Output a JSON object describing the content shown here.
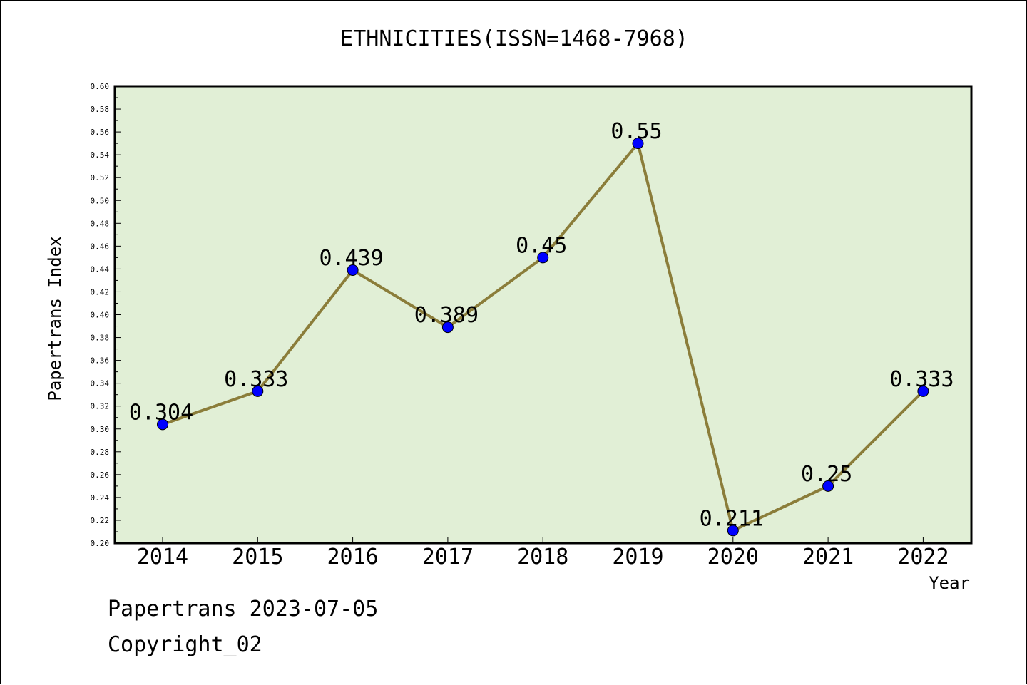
{
  "title": "ETHNICITIES(ISSN=1468-7968)",
  "footer": {
    "line1": "Papertrans 2023-07-05",
    "line2": "Copyright_02"
  },
  "colors": {
    "plot_background": "#e1efd6",
    "line": "#8b7d3a",
    "marker": "#0000ff"
  },
  "chart_data": {
    "type": "line",
    "title": "ETHNICITIES(ISSN=1468-7968)",
    "xlabel": "Year",
    "ylabel": "Papertrans Index",
    "categories": [
      "2014",
      "2015",
      "2016",
      "2017",
      "2018",
      "2019",
      "2020",
      "2021",
      "2022"
    ],
    "values": [
      0.304,
      0.333,
      0.439,
      0.389,
      0.45,
      0.55,
      0.211,
      0.25,
      0.333
    ],
    "data_labels": [
      "0.304",
      "0.333",
      "0.439",
      "0.389",
      "0.45",
      "0.55",
      "0.211",
      "0.25",
      "0.333"
    ],
    "ylim": [
      0.2,
      0.6
    ],
    "yticks": [
      "0.20",
      "0.22",
      "0.24",
      "0.26",
      "0.28",
      "0.30",
      "0.32",
      "0.34",
      "0.36",
      "0.38",
      "0.40",
      "0.42",
      "0.44",
      "0.46",
      "0.48",
      "0.50",
      "0.52",
      "0.54",
      "0.56",
      "0.58",
      "0.60"
    ],
    "grid": false,
    "legend": "none"
  }
}
